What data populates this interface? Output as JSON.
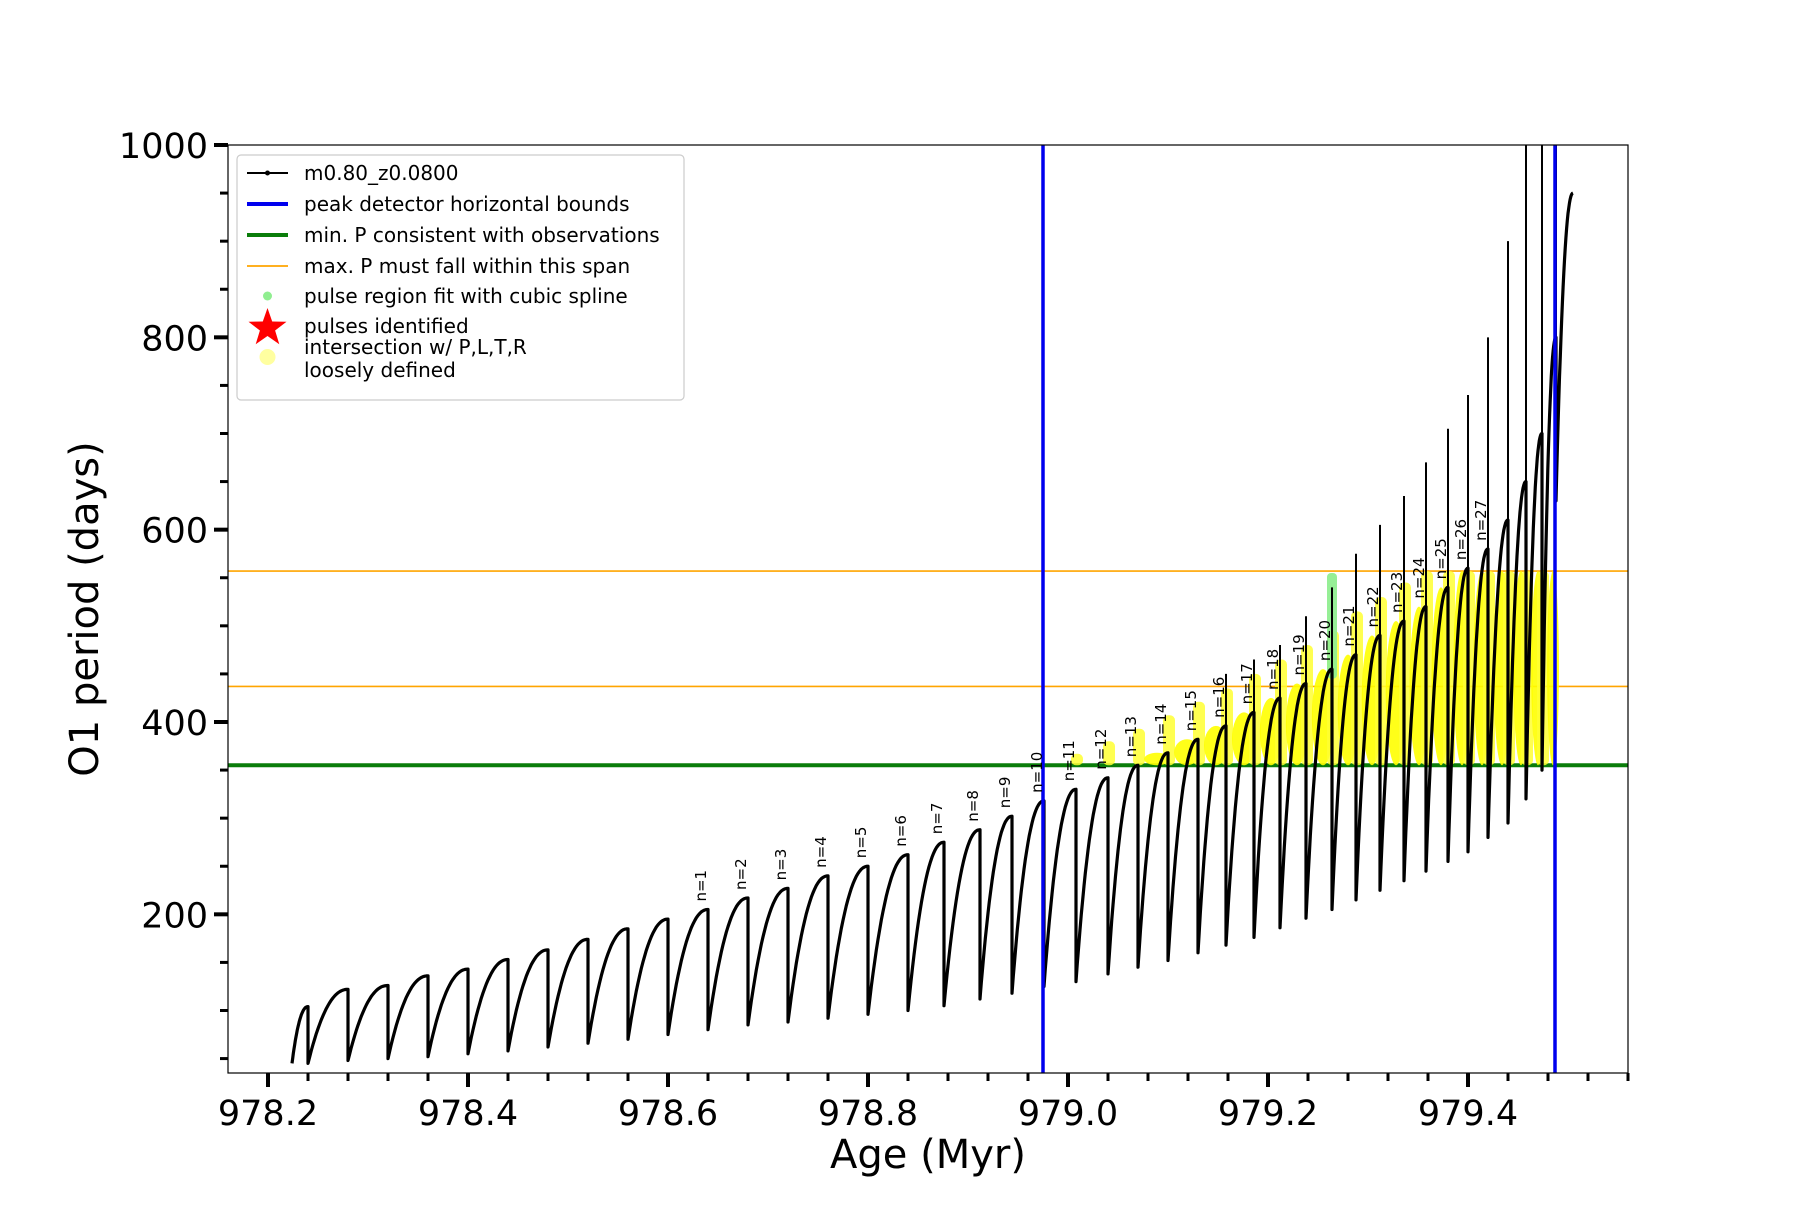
{
  "chart_data": {
    "type": "line",
    "title": "",
    "xlabel": "Age (Myr)",
    "ylabel": "O1 period (days)",
    "xlim": [
      978.16,
      979.56
    ],
    "ylim": [
      35,
      1000
    ],
    "x_ticks": [
      978.2,
      978.4,
      978.6,
      978.8,
      979.0,
      979.2,
      979.4
    ],
    "x_tick_labels": [
      "978.2",
      "978.4",
      "978.6",
      "978.8",
      "979.0",
      "979.2",
      "979.4"
    ],
    "y_ticks": [
      200,
      400,
      600,
      800,
      1000
    ],
    "y_tick_labels": [
      "200",
      "400",
      "600",
      "800",
      "1000"
    ],
    "grid": false,
    "legend_position": "top-left",
    "legend": [
      {
        "label": "m0.80_z0.0800",
        "kind": "line-marker",
        "color": "#000000"
      },
      {
        "label": "peak detector horizontal bounds",
        "kind": "line",
        "color": "#0000ee"
      },
      {
        "label": "min. P consistent with observations",
        "kind": "line",
        "color": "#0a7d0a"
      },
      {
        "label": "max. P must fall within this span",
        "kind": "line",
        "color": "#ffa500"
      },
      {
        "label": "pulse region fit with cubic spline",
        "kind": "dot",
        "color": "#90ee90"
      },
      {
        "label": "pulses identified",
        "kind": "star",
        "color": "#ff0000"
      },
      {
        "label": "intersection w/ P,L,T,R\nloosely defined",
        "kind": "dot",
        "color": "#ffffa0"
      }
    ],
    "vertical_lines": [
      {
        "x": 978.975,
        "color": "#0000ee",
        "name": "peak detector horizontal bounds"
      },
      {
        "x": 979.487,
        "color": "#0000ee",
        "name": "peak detector horizontal bounds"
      }
    ],
    "horizontal_lines": [
      {
        "y": 355,
        "color": "#0a7d0a",
        "name": "min. P consistent with observations"
      },
      {
        "y": 437,
        "color": "#ffa500",
        "name": "max. P must fall within this span"
      },
      {
        "y": 557,
        "color": "#ffa500",
        "name": "max. P must fall within this span"
      }
    ],
    "series": [
      {
        "name": "m0.80_z0.0800",
        "color": "#000000",
        "cycles": [
          {
            "start": 978.224,
            "min": 45,
            "max": 104
          },
          {
            "start": 978.24,
            "min": 45,
            "max": 122
          },
          {
            "start": 978.28,
            "min": 48,
            "max": 126
          },
          {
            "start": 978.32,
            "min": 50,
            "max": 136
          },
          {
            "start": 978.36,
            "min": 52,
            "max": 143
          },
          {
            "start": 978.4,
            "min": 55,
            "max": 153
          },
          {
            "start": 978.44,
            "min": 58,
            "max": 163
          },
          {
            "start": 978.48,
            "min": 62,
            "max": 174
          },
          {
            "start": 978.52,
            "min": 66,
            "max": 185
          },
          {
            "start": 978.56,
            "min": 70,
            "max": 195
          },
          {
            "start": 978.6,
            "min": 75,
            "max": 205,
            "label": "n=1"
          },
          {
            "start": 978.64,
            "min": 80,
            "max": 217,
            "label": "n=2"
          },
          {
            "start": 978.68,
            "min": 85,
            "max": 227,
            "label": "n=3"
          },
          {
            "start": 978.72,
            "min": 88,
            "max": 240,
            "label": "n=4"
          },
          {
            "start": 978.76,
            "min": 92,
            "max": 250,
            "label": "n=5"
          },
          {
            "start": 978.8,
            "min": 96,
            "max": 262,
            "label": "n=6"
          },
          {
            "start": 978.84,
            "min": 100,
            "max": 275,
            "label": "n=7"
          },
          {
            "start": 978.876,
            "min": 105,
            "max": 288,
            "label": "n=8"
          },
          {
            "start": 978.912,
            "min": 112,
            "max": 302,
            "label": "n=9"
          },
          {
            "start": 978.944,
            "min": 118,
            "max": 318,
            "label": "n=10"
          },
          {
            "start": 978.976,
            "min": 125,
            "max": 330,
            "label": "n=11"
          },
          {
            "start": 979.008,
            "min": 130,
            "max": 342,
            "label": "n=12"
          },
          {
            "start": 979.04,
            "min": 138,
            "max": 355,
            "label": "n=13"
          },
          {
            "start": 979.07,
            "min": 145,
            "max": 368,
            "label": "n=14"
          },
          {
            "start": 979.1,
            "min": 152,
            "max": 382,
            "label": "n=15"
          },
          {
            "start": 979.13,
            "min": 160,
            "max": 396,
            "label": "n=16"
          },
          {
            "start": 979.158,
            "min": 168,
            "max": 410,
            "label": "n=17"
          },
          {
            "start": 979.186,
            "min": 176,
            "max": 425,
            "label": "n=18"
          },
          {
            "start": 979.212,
            "min": 186,
            "max": 440,
            "label": "n=19"
          },
          {
            "start": 979.238,
            "min": 196,
            "max": 455,
            "label": "n=20"
          },
          {
            "start": 979.264,
            "min": 205,
            "max": 470,
            "label": "n=21"
          },
          {
            "start": 979.288,
            "min": 215,
            "max": 490,
            "label": "n=22"
          },
          {
            "start": 979.312,
            "min": 225,
            "max": 505,
            "label": "n=23"
          },
          {
            "start": 979.336,
            "min": 235,
            "max": 520,
            "label": "n=24"
          },
          {
            "start": 979.358,
            "min": 245,
            "max": 540,
            "label": "n=25"
          },
          {
            "start": 979.38,
            "min": 255,
            "max": 560,
            "label": "n=26"
          },
          {
            "start": 979.4,
            "min": 265,
            "max": 580,
            "label": "n=27"
          },
          {
            "start": 979.42,
            "min": 280,
            "max": 610
          },
          {
            "start": 979.44,
            "min": 295,
            "max": 650
          },
          {
            "start": 979.458,
            "min": 320,
            "max": 700
          },
          {
            "start": 979.474,
            "min": 350,
            "max": 800
          },
          {
            "start": 979.488,
            "min": 630,
            "max": 950
          }
        ]
      }
    ]
  }
}
